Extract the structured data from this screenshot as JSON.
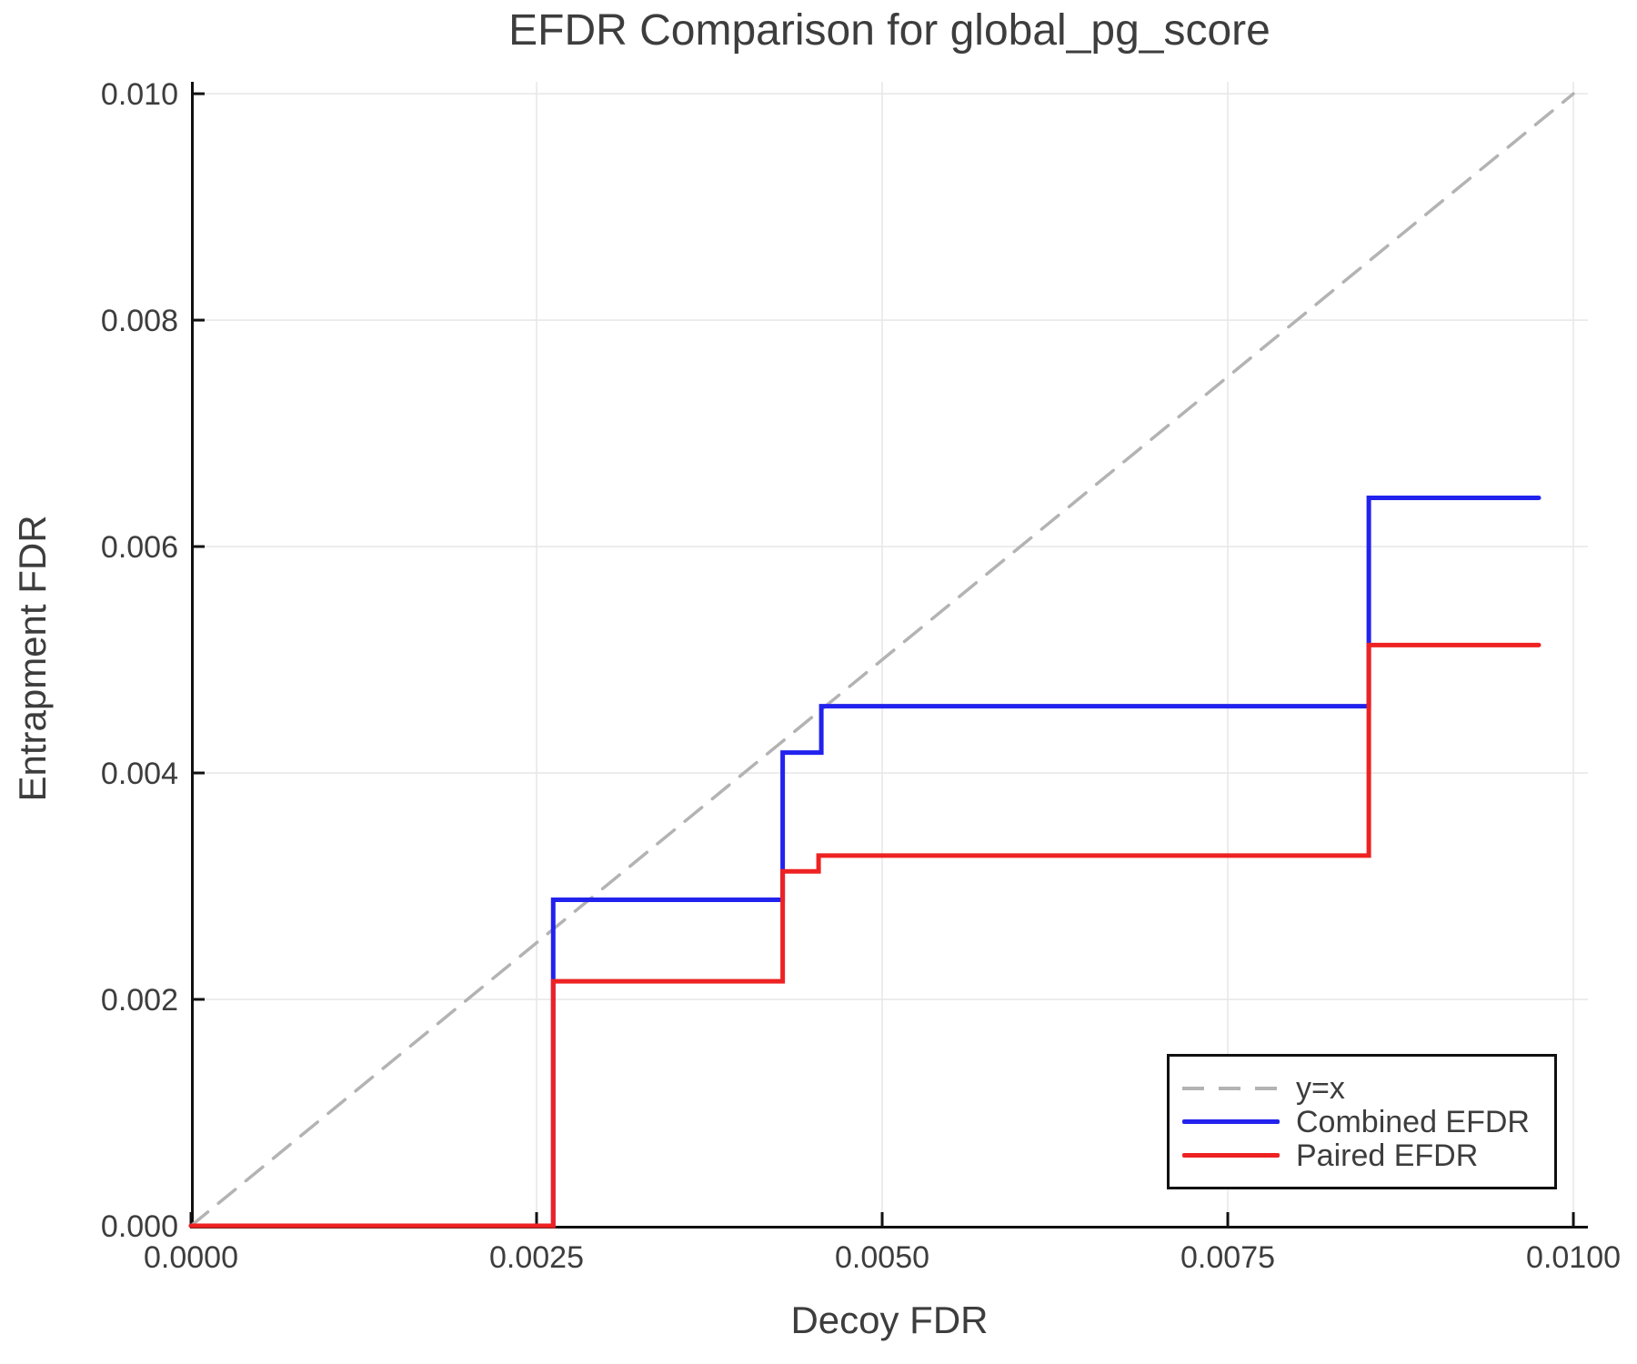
{
  "chart_data": {
    "type": "line",
    "title": "EFDR Comparison for global_pg_score",
    "xlabel": "Decoy FDR",
    "ylabel": "Entrapment FDR",
    "xlim": [
      0,
      0.010105
    ],
    "ylim": [
      0,
      0.010105
    ],
    "grid": true,
    "legend_position": "lower right",
    "x_ticks": [
      {
        "value": 0.0,
        "label": "0.0000"
      },
      {
        "value": 0.0025,
        "label": "0.0025"
      },
      {
        "value": 0.005,
        "label": "0.0050"
      },
      {
        "value": 0.0075,
        "label": "0.0075"
      },
      {
        "value": 0.01,
        "label": "0.0100"
      }
    ],
    "y_ticks": [
      {
        "value": 0.0,
        "label": "0.000"
      },
      {
        "value": 0.002,
        "label": "0.002"
      },
      {
        "value": 0.004,
        "label": "0.004"
      },
      {
        "value": 0.006,
        "label": "0.006"
      },
      {
        "value": 0.008,
        "label": "0.008"
      },
      {
        "value": 0.01,
        "label": "0.010"
      }
    ],
    "series": [
      {
        "name": "y=x",
        "style": "dashed",
        "color": "#b3b3b3",
        "width": 3.5,
        "x": [
          0,
          0.01
        ],
        "y": [
          0,
          0.01
        ]
      },
      {
        "name": "Combined EFDR",
        "style": "solid",
        "color": "#2222ee",
        "width": 5,
        "x": [
          0,
          0.00262,
          0.00262,
          0.00428,
          0.00428,
          0.00456,
          0.00456,
          0.00852,
          0.00852,
          0.00975
        ],
        "y": [
          0,
          0,
          0.00288,
          0.00288,
          0.00418,
          0.00418,
          0.00459,
          0.00459,
          0.00643,
          0.00643
        ]
      },
      {
        "name": "Paired EFDR",
        "style": "solid",
        "color": "#ee2222",
        "width": 5,
        "x": [
          0,
          0.00262,
          0.00262,
          0.00428,
          0.00428,
          0.00454,
          0.00454,
          0.00852,
          0.00852,
          0.00975
        ],
        "y": [
          0,
          0,
          0.00216,
          0.00216,
          0.00313,
          0.00313,
          0.00327,
          0.00327,
          0.00513,
          0.00513
        ]
      }
    ],
    "colors": {
      "text": "#3d3d3d",
      "spine": "#111111",
      "gridline": "#e8e8e8",
      "background": "#ffffff"
    }
  }
}
